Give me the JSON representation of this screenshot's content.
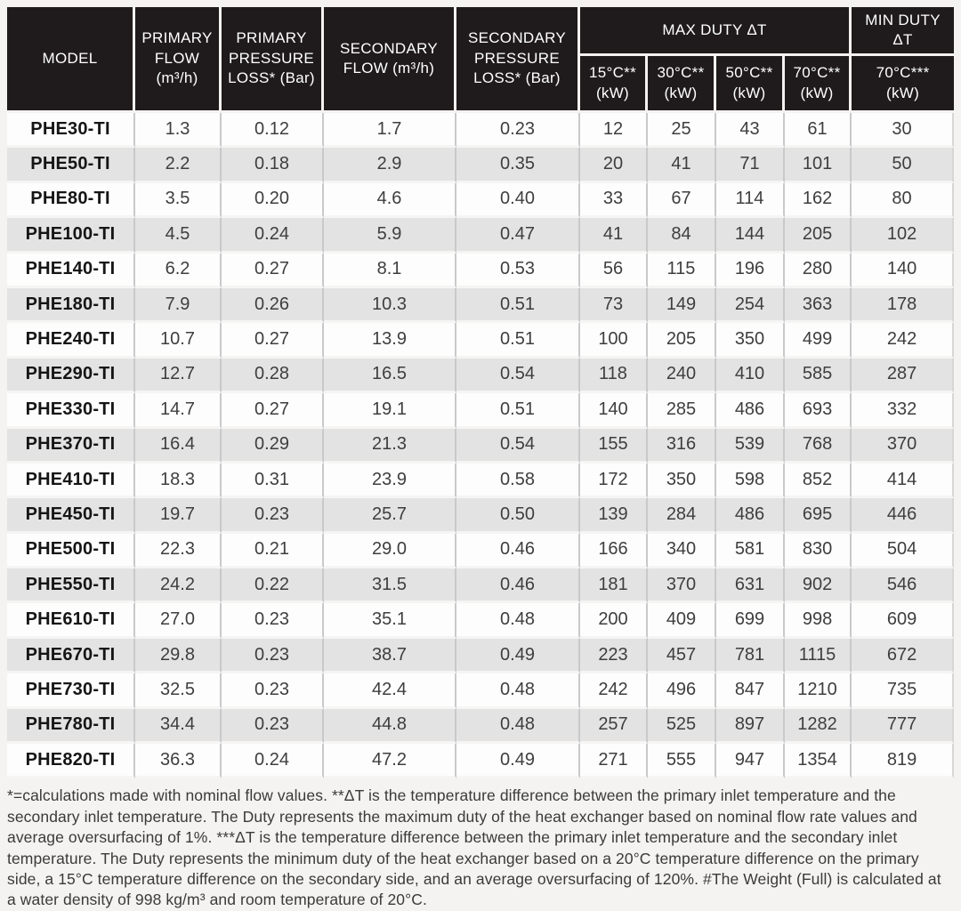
{
  "colors": {
    "header_bg": "#1f1b1c",
    "header_text": "#ffffff",
    "row_light": "#fdfdfd",
    "row_shaded": "#e3e3e3",
    "grid_line": "#c9c9c9",
    "page_bg": "#f4f3f1"
  },
  "table": {
    "headers": {
      "model": "MODEL",
      "primary_flow": "PRIMARY FLOW (m³/h)",
      "primary_pressure_loss": "PRIMARY PRESSURE LOSS* (Bar)",
      "secondary_flow": "SECONDARY FLOW (m³/h)",
      "secondary_pressure_loss": "SECONDARY PRESSURE LOSS* (Bar)",
      "max_duty_group": "MAX DUTY ΔT",
      "max_duty_subs": [
        "15°C** (kW)",
        "30°C** (kW)",
        "50°C** (kW)",
        "70°C** (kW)"
      ],
      "min_duty_group": "MIN DUTY ΔT",
      "min_duty_sub": "70°C*** (kW)"
    },
    "rows": [
      {
        "model": "PHE30-TI",
        "values": [
          "1.3",
          "0.12",
          "1.7",
          "0.23",
          "12",
          "25",
          "43",
          "61",
          "30"
        ]
      },
      {
        "model": "PHE50-TI",
        "values": [
          "2.2",
          "0.18",
          "2.9",
          "0.35",
          "20",
          "41",
          "71",
          "101",
          "50"
        ]
      },
      {
        "model": "PHE80-TI",
        "values": [
          "3.5",
          "0.20",
          "4.6",
          "0.40",
          "33",
          "67",
          "114",
          "162",
          "80"
        ]
      },
      {
        "model": "PHE100-TI",
        "values": [
          "4.5",
          "0.24",
          "5.9",
          "0.47",
          "41",
          "84",
          "144",
          "205",
          "102"
        ]
      },
      {
        "model": "PHE140-TI",
        "values": [
          "6.2",
          "0.27",
          "8.1",
          "0.53",
          "56",
          "115",
          "196",
          "280",
          "140"
        ]
      },
      {
        "model": "PHE180-TI",
        "values": [
          "7.9",
          "0.26",
          "10.3",
          "0.51",
          "73",
          "149",
          "254",
          "363",
          "178"
        ]
      },
      {
        "model": "PHE240-TI",
        "values": [
          "10.7",
          "0.27",
          "13.9",
          "0.51",
          "100",
          "205",
          "350",
          "499",
          "242"
        ]
      },
      {
        "model": "PHE290-TI",
        "values": [
          "12.7",
          "0.28",
          "16.5",
          "0.54",
          "118",
          "240",
          "410",
          "585",
          "287"
        ]
      },
      {
        "model": "PHE330-TI",
        "values": [
          "14.7",
          "0.27",
          "19.1",
          "0.51",
          "140",
          "285",
          "486",
          "693",
          "332"
        ]
      },
      {
        "model": "PHE370-TI",
        "values": [
          "16.4",
          "0.29",
          "21.3",
          "0.54",
          "155",
          "316",
          "539",
          "768",
          "370"
        ]
      },
      {
        "model": "PHE410-TI",
        "values": [
          "18.3",
          "0.31",
          "23.9",
          "0.58",
          "172",
          "350",
          "598",
          "852",
          "414"
        ]
      },
      {
        "model": "PHE450-TI",
        "values": [
          "19.7",
          "0.23",
          "25.7",
          "0.50",
          "139",
          "284",
          "486",
          "695",
          "446"
        ]
      },
      {
        "model": "PHE500-TI",
        "values": [
          "22.3",
          "0.21",
          "29.0",
          "0.46",
          "166",
          "340",
          "581",
          "830",
          "504"
        ]
      },
      {
        "model": "PHE550-TI",
        "values": [
          "24.2",
          "0.22",
          "31.5",
          "0.46",
          "181",
          "370",
          "631",
          "902",
          "546"
        ]
      },
      {
        "model": "PHE610-TI",
        "values": [
          "27.0",
          "0.23",
          "35.1",
          "0.48",
          "200",
          "409",
          "699",
          "998",
          "609"
        ]
      },
      {
        "model": "PHE670-TI",
        "values": [
          "29.8",
          "0.23",
          "38.7",
          "0.49",
          "223",
          "457",
          "781",
          "1115",
          "672"
        ]
      },
      {
        "model": "PHE730-TI",
        "values": [
          "32.5",
          "0.23",
          "42.4",
          "0.48",
          "242",
          "496",
          "847",
          "1210",
          "735"
        ]
      },
      {
        "model": "PHE780-TI",
        "values": [
          "34.4",
          "0.23",
          "44.8",
          "0.48",
          "257",
          "525",
          "897",
          "1282",
          "777"
        ]
      },
      {
        "model": "PHE820-TI",
        "values": [
          "36.3",
          "0.24",
          "47.2",
          "0.49",
          "271",
          "555",
          "947",
          "1354",
          "819"
        ]
      }
    ]
  },
  "footnote": {
    "text": "*=calculations made with nominal flow values. **ΔT is the temperature difference between the primary inlet temperature and the secondary inlet temperature. The Duty represents the maximum duty of the heat exchanger based on nominal flow rate values and average oversurfacing of 1%. ***ΔT is the temperature difference between the primary inlet temperature and the secondary inlet temperature. The Duty represents the minimum duty of the heat exchanger based on a 20°C temperature difference on the primary side, a 15°C temperature difference on the secondary side, and an average oversurfacing of 120%. #The Weight (Full) is calculated at a water density of 998 kg/m³ and room temperature of 20°C."
  }
}
